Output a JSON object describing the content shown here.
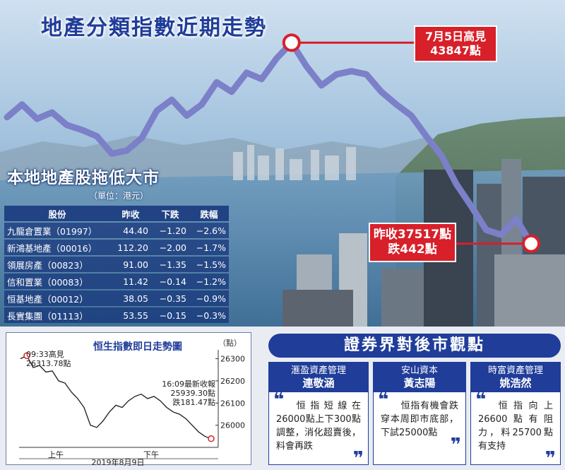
{
  "header": {
    "title": "地產分類指數近期走勢"
  },
  "callouts": {
    "high": {
      "line1": "7月5日高見",
      "line2": "43847點"
    },
    "close": {
      "line1": "昨收37517點",
      "line2": "跌442點"
    }
  },
  "colors": {
    "brand_blue": "#1f3d99",
    "line_lavender": "#7b80c8",
    "callout_red": "#d7202a",
    "intraday_line": "#1a1a1a"
  },
  "stock_table": {
    "title": "本地地產股拖低大市",
    "unit": "（單位：港元）",
    "headers": [
      "股份",
      "昨收",
      "下跌",
      "跌幅"
    ],
    "rows": [
      {
        "name": "九龍倉置業（01997）",
        "close": "44.40",
        "drop": "−1.20",
        "pct": "−2.6%"
      },
      {
        "name": "新鴻基地產（00016）",
        "close": "112.20",
        "drop": "−2.00",
        "pct": "−1.7%"
      },
      {
        "name": "領展房產（00823）",
        "close": "91.00",
        "drop": "−1.35",
        "pct": "−1.5%"
      },
      {
        "name": "信和置業（00083）",
        "close": "11.42",
        "drop": "−0.14",
        "pct": "−1.2%"
      },
      {
        "name": "恒基地產（00012）",
        "close": "38.05",
        "drop": "−0.35",
        "pct": "−0.9%"
      },
      {
        "name": "長實集團（01113）",
        "close": "53.55",
        "drop": "−0.15",
        "pct": "−0.3%"
      }
    ]
  },
  "intraday": {
    "title": "恒生指數即日走勢圖",
    "unit": "（點）",
    "high_label": {
      "line1": "09:33高見",
      "line2": "26313.78點"
    },
    "close_label": {
      "line1": "16:09最新收報",
      "line2": "25939.30點",
      "line3": "跌181.47點"
    },
    "session_am": "上午",
    "session_pm": "下午",
    "date": "2019年8月9日"
  },
  "views": {
    "title": "證券界對後市觀點",
    "analysts": [
      {
        "firm": "滙盈資產管理",
        "person": "連敬涵",
        "quote": "恒指短線在26000點上下300點調整，消化超賣後，料會再跌"
      },
      {
        "firm": "安山資本",
        "person": "黃志陽",
        "quote": "恒指有機會跌穿本周即市底部，下試25000點"
      },
      {
        "firm": "時富資產管理",
        "person": "姚浩然",
        "quote": "恒指向上26600點有阻力，料25700點有支持"
      }
    ]
  },
  "chart_data": [
    {
      "type": "line",
      "title": "地產分類指數近期走勢",
      "series": [
        {
          "values": [
            41500,
            41900,
            41450,
            41650,
            41250,
            41100,
            40900,
            40350,
            40450,
            40850,
            41700,
            42050,
            41550,
            41900,
            42600,
            42300,
            42900,
            42700,
            43350,
            43847,
            43100,
            42500,
            42850,
            42950,
            42850,
            42300,
            41900,
            41550,
            40900,
            40300,
            39400,
            38700,
            37950,
            37800,
            38300,
            37517
          ]
        }
      ],
      "ylim": [
        37000,
        44300
      ],
      "annotations": [
        {
          "text": "7月5日高見43847點",
          "value": 43847
        },
        {
          "text": "昨收37517點跌442點",
          "value": 37517
        }
      ]
    },
    {
      "type": "line",
      "title": "恒生指數即日走勢圖",
      "ylabel": "點",
      "y_ticks": [
        26000,
        26100,
        26200,
        26300
      ],
      "ylim": [
        25900,
        26340
      ],
      "x_labels": [
        "上午",
        "下午"
      ],
      "xlabel": "2019年8月9日",
      "series": [
        {
          "values": [
            26300,
            26313.78,
            26260,
            26270,
            26240,
            26245,
            26200,
            26190,
            26150,
            26120,
            26080,
            26000,
            25990,
            26020,
            26060,
            26090,
            26080,
            26110,
            26130,
            26140,
            26120,
            26130,
            26110,
            26080,
            26060,
            26050,
            26030,
            26000,
            25970,
            25950,
            25939.3
          ]
        }
      ]
    }
  ]
}
